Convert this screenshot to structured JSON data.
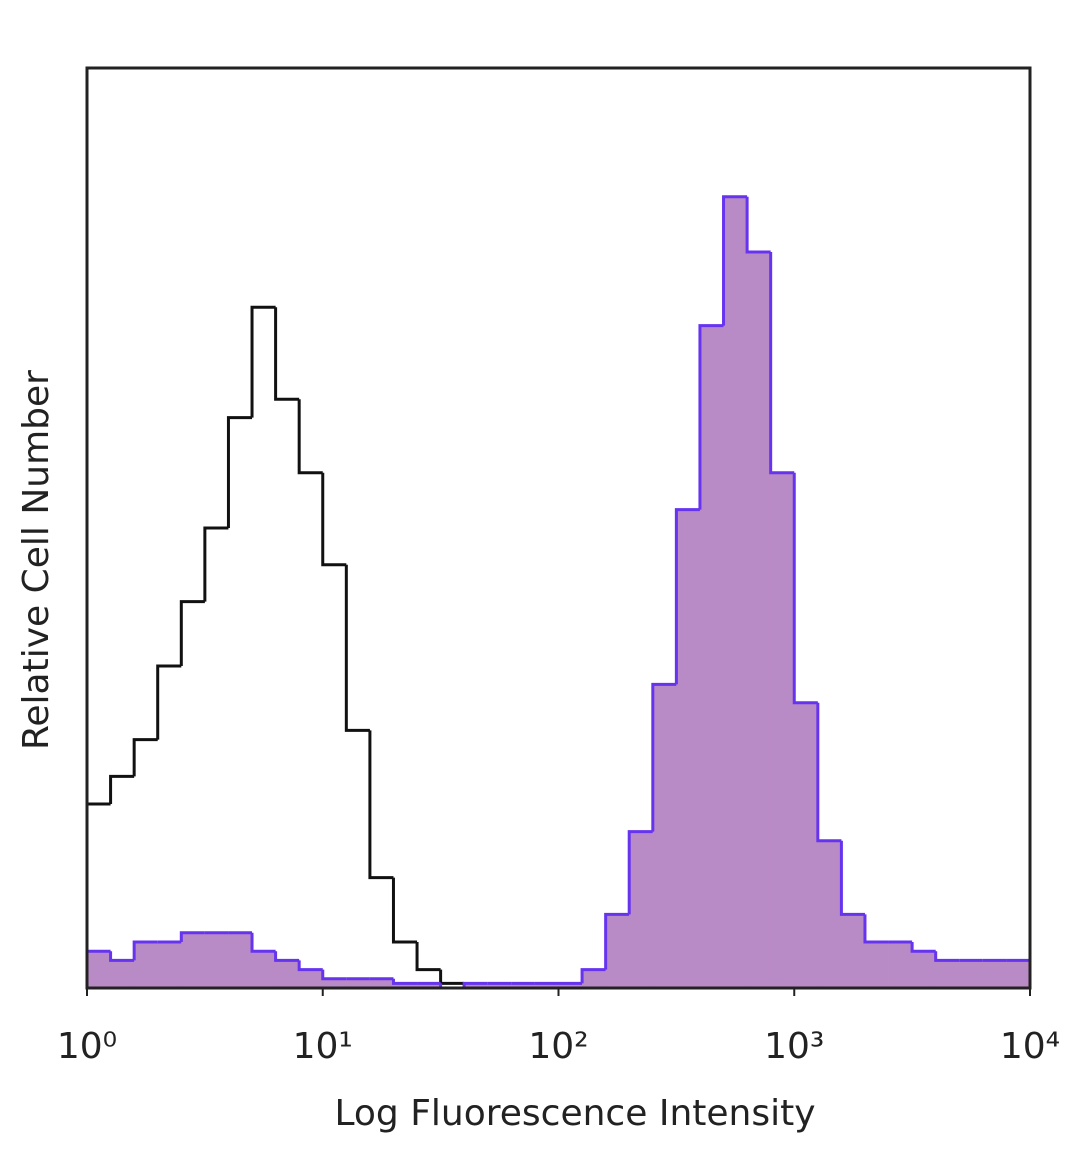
{
  "chart_data": {
    "type": "histogram",
    "x_label": "Log Fluorescence Intensity",
    "y_label": "Relative Cell Number",
    "x_scale": "log",
    "xlim": [
      1,
      10000
    ],
    "xticks": [
      {
        "value": 1,
        "label": "10⁰"
      },
      {
        "value": 10,
        "label": "10¹"
      },
      {
        "value": 100,
        "label": "10²"
      },
      {
        "value": 1000,
        "label": "10³"
      },
      {
        "value": 10000,
        "label": "10⁴"
      }
    ],
    "ylim": [
      0,
      100
    ],
    "grid": false,
    "bins": [
      1,
      1.259,
      1.585,
      1.995,
      2.512,
      3.162,
      3.981,
      5.012,
      6.31,
      7.943,
      10,
      12.59,
      15.85,
      19.95,
      25.12,
      31.62,
      39.81,
      50.12,
      63.1,
      79.43,
      100,
      125.9,
      158.5,
      199.5,
      251.2,
      316.2,
      398.1,
      501.2,
      631,
      794.3,
      1000,
      1259,
      1585,
      1995,
      2512,
      3162,
      3981,
      5012,
      6310,
      7943,
      10000
    ],
    "series": [
      {
        "color": "#111111",
        "fill": "none",
        "values": [
          20,
          23,
          27,
          35,
          42,
          50,
          62,
          74,
          64,
          56,
          46,
          28,
          12,
          5,
          2,
          0.5,
          0,
          0,
          0,
          0,
          0,
          0,
          0,
          0,
          0,
          0,
          0,
          0,
          0,
          0,
          0,
          0,
          0,
          0,
          0,
          0,
          0,
          0,
          0,
          0
        ]
      },
      {
        "color": "#6633ee",
        "fill": "#b98bc6",
        "values": [
          4,
          3,
          5,
          5,
          6,
          6,
          6,
          4,
          3,
          2,
          1,
          1,
          1,
          0.5,
          0.5,
          0,
          0.5,
          0.5,
          0.5,
          0.5,
          0.5,
          2,
          8,
          17,
          33,
          52,
          72,
          86,
          80,
          56,
          31,
          16,
          8,
          5,
          5,
          4,
          3,
          3,
          3,
          3
        ]
      }
    ]
  }
}
